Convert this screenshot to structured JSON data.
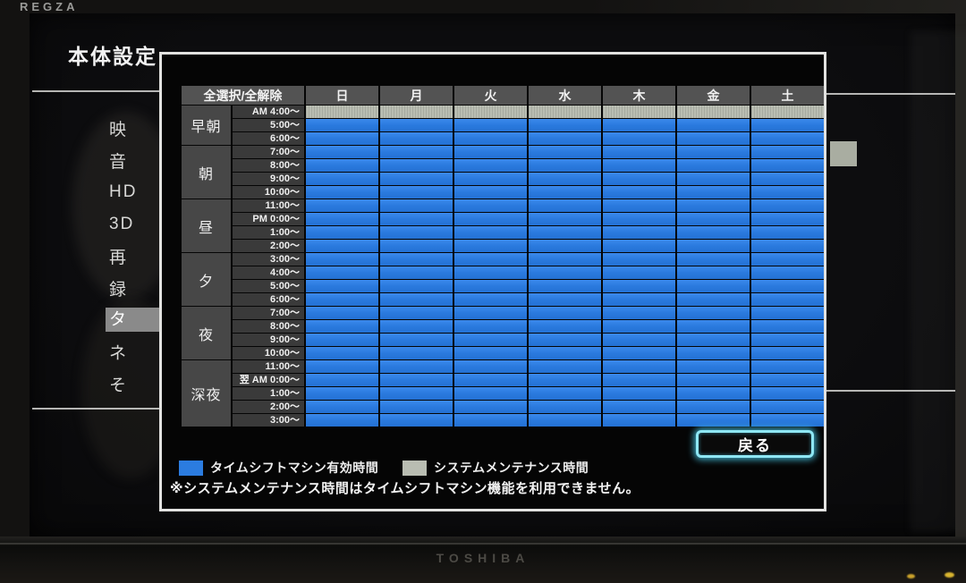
{
  "colors": {
    "active_blue": "#2b7ce0",
    "maintenance_gray": "#b9bdb2",
    "accent_cyan": "#8ee7f4"
  },
  "tv": {
    "brand_top": "REGZA",
    "brand_bottom": "TOSHIBA"
  },
  "screen": {
    "title": "本体設定",
    "sidebar": {
      "items": [
        {
          "label": "映",
          "selected": false
        },
        {
          "label": "音",
          "selected": false
        },
        {
          "label": "HD",
          "selected": false
        },
        {
          "label": "3D",
          "selected": false
        },
        {
          "label": "再",
          "selected": false
        },
        {
          "label": "録",
          "selected": false
        },
        {
          "label": "タ",
          "selected": true
        },
        {
          "label": "ネ",
          "selected": false
        },
        {
          "label": "そ",
          "selected": false
        }
      ]
    }
  },
  "dialog": {
    "select_all_label": "全選択/全解除",
    "days": [
      "日",
      "月",
      "火",
      "水",
      "木",
      "金",
      "土"
    ],
    "row_groups": [
      {
        "name": "早朝",
        "rows": [
          {
            "time": "AM 4:00～",
            "state": "maintenance"
          },
          {
            "time": "5:00～",
            "state": "active"
          },
          {
            "time": "6:00～",
            "state": "active"
          }
        ]
      },
      {
        "name": "朝",
        "rows": [
          {
            "time": "7:00～",
            "state": "active"
          },
          {
            "time": "8:00～",
            "state": "active"
          },
          {
            "time": "9:00～",
            "state": "active"
          },
          {
            "time": "10:00～",
            "state": "active"
          }
        ]
      },
      {
        "name": "昼",
        "rows": [
          {
            "time": "11:00～",
            "state": "active"
          },
          {
            "time": "PM 0:00～",
            "state": "active"
          },
          {
            "time": "1:00～",
            "state": "active"
          },
          {
            "time": "2:00～",
            "state": "active"
          }
        ]
      },
      {
        "name": "夕",
        "rows": [
          {
            "time": "3:00～",
            "state": "active"
          },
          {
            "time": "4:00～",
            "state": "active"
          },
          {
            "time": "5:00～",
            "state": "active"
          },
          {
            "time": "6:00～",
            "state": "active"
          }
        ]
      },
      {
        "name": "夜",
        "rows": [
          {
            "time": "7:00～",
            "state": "active"
          },
          {
            "time": "8:00～",
            "state": "active"
          },
          {
            "time": "9:00～",
            "state": "active"
          },
          {
            "time": "10:00～",
            "state": "active"
          }
        ]
      },
      {
        "name": "深夜",
        "rows": [
          {
            "time": "11:00～",
            "state": "active"
          },
          {
            "time": "翌 AM 0:00～",
            "state": "active"
          },
          {
            "time": "1:00～",
            "state": "active"
          },
          {
            "time": "2:00～",
            "state": "active"
          },
          {
            "time": "3:00～",
            "state": "active"
          }
        ]
      }
    ],
    "back_label": "戻る",
    "legend": [
      {
        "state": "active",
        "label": "タイムシフトマシン有効時間"
      },
      {
        "state": "maintenance",
        "label": "システムメンテナンス時間"
      }
    ],
    "note": "※システムメンテナンス時間はタイムシフトマシン機能を利用できません。"
  }
}
